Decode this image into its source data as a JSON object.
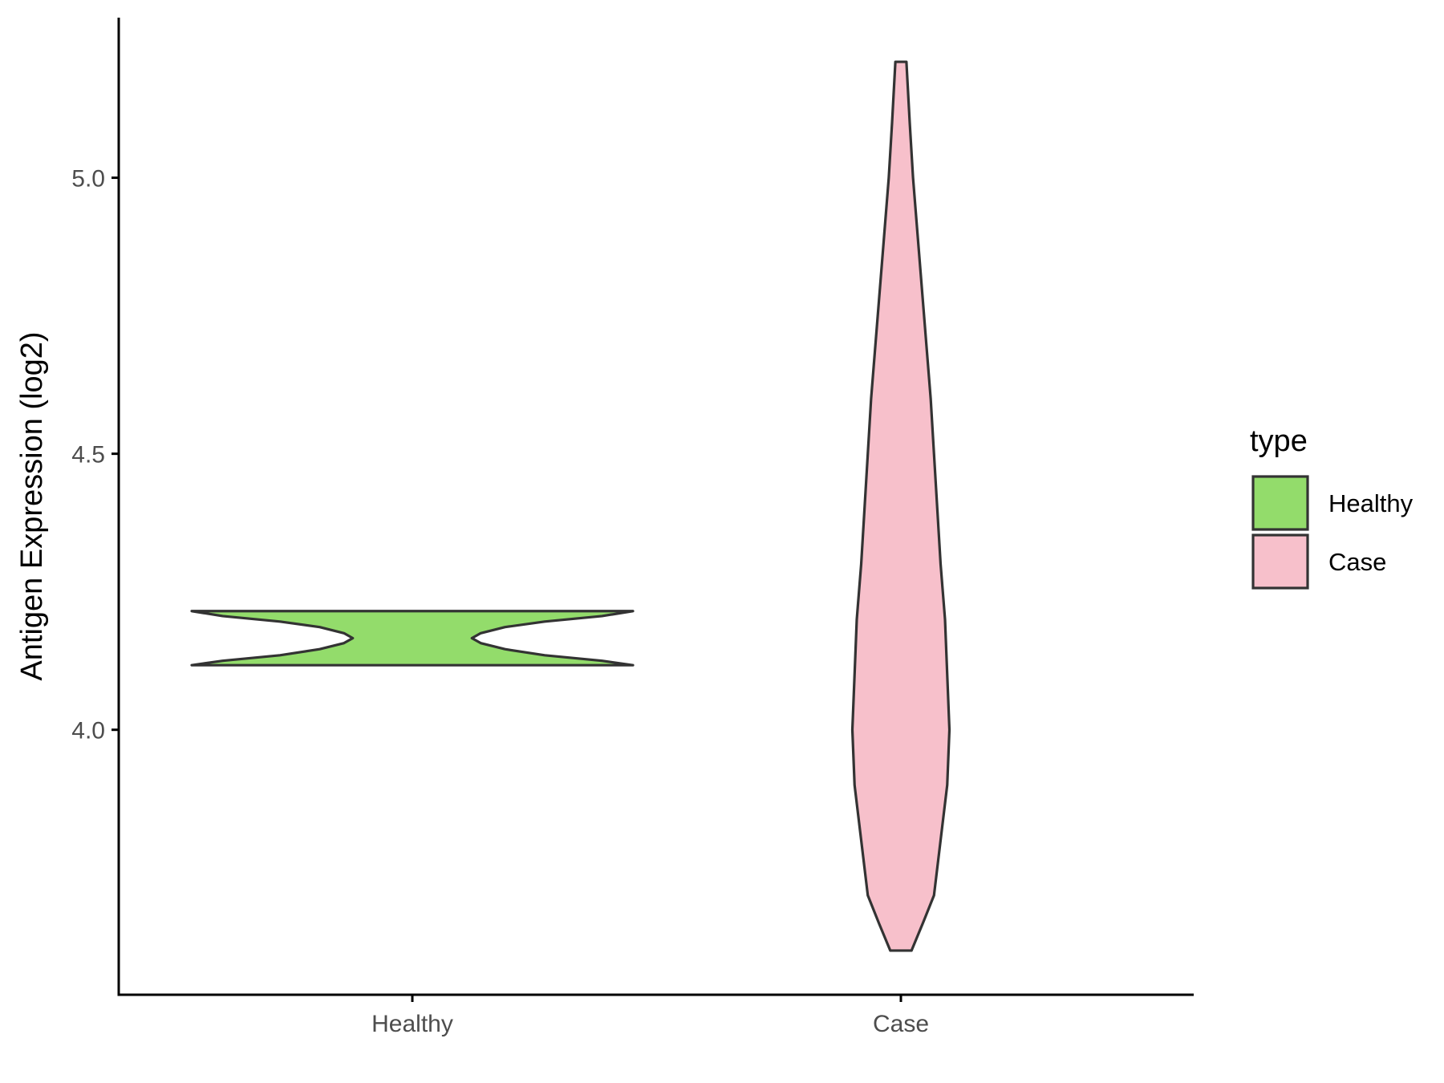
{
  "chart_data": {
    "type": "violin",
    "ylabel": "Antigen Expression (log2)",
    "xlabel": "",
    "categories": [
      "Healthy",
      "Case"
    ],
    "ylim": [
      3.52,
      5.29
    ],
    "y_ticks": [
      {
        "value": 4.0,
        "label": "4.0"
      },
      {
        "value": 4.5,
        "label": "4.5"
      },
      {
        "value": 5.0,
        "label": "5.0"
      }
    ],
    "grid": false,
    "legend": {
      "title": "type",
      "placement": "right",
      "entries": [
        {
          "label": "Healthy",
          "color": "#93dc6b"
        },
        {
          "label": "Case",
          "color": "#f7c0cb"
        }
      ]
    },
    "series": [
      {
        "name": "Healthy",
        "color": "#93dc6b",
        "min": 4.117,
        "max": 4.215,
        "density_profile": [
          [
            4.117,
            1.0
          ],
          [
            4.125,
            0.86
          ],
          [
            4.135,
            0.6
          ],
          [
            4.146,
            0.42
          ],
          [
            4.157,
            0.31
          ],
          [
            4.166,
            0.27
          ],
          [
            4.175,
            0.31
          ],
          [
            4.186,
            0.42
          ],
          [
            4.196,
            0.6
          ],
          [
            4.206,
            0.86
          ],
          [
            4.215,
            1.0
          ]
        ]
      },
      {
        "name": "Case",
        "color": "#f7c0cb",
        "min": 3.6,
        "max": 5.21,
        "density_profile": [
          [
            3.6,
            0.048
          ],
          [
            3.65,
            0.1
          ],
          [
            3.7,
            0.15
          ],
          [
            3.8,
            0.18
          ],
          [
            3.9,
            0.21
          ],
          [
            4.0,
            0.22
          ],
          [
            4.1,
            0.21
          ],
          [
            4.2,
            0.2
          ],
          [
            4.3,
            0.18
          ],
          [
            4.4,
            0.165
          ],
          [
            4.5,
            0.15
          ],
          [
            4.6,
            0.135
          ],
          [
            4.7,
            0.115
          ],
          [
            4.8,
            0.095
          ],
          [
            4.9,
            0.075
          ],
          [
            5.0,
            0.055
          ],
          [
            5.1,
            0.04
          ],
          [
            5.21,
            0.025
          ]
        ]
      }
    ]
  },
  "colors": {
    "axis": "#000000",
    "outline": "#333333",
    "tick_text": "#4d4d4d"
  }
}
